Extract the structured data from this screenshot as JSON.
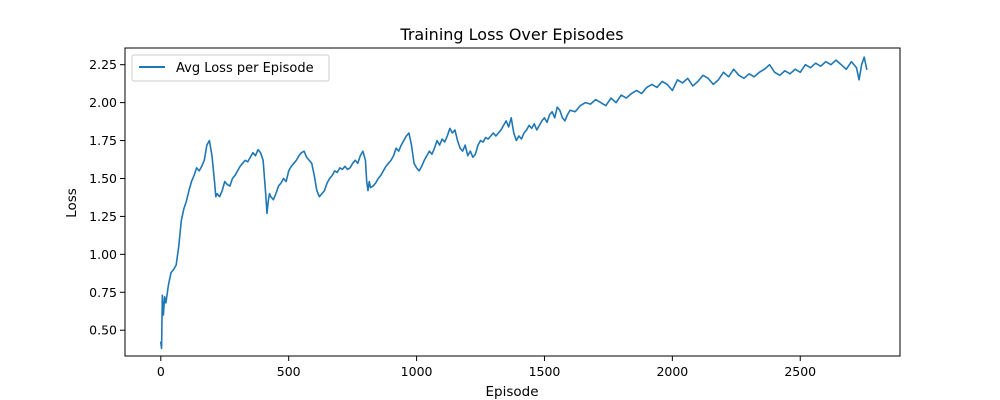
{
  "chart_data": {
    "type": "line",
    "title": "Training Loss Over Episodes",
    "xlabel": "Episode",
    "ylabel": "Loss",
    "xlim": [
      -140,
      2890
    ],
    "ylim": [
      0.33,
      2.36
    ],
    "xticks": [
      0,
      500,
      1000,
      1500,
      2000,
      2500
    ],
    "xtick_labels": [
      "0",
      "500",
      "1000",
      "1500",
      "2000",
      "2500"
    ],
    "yticks": [
      0.5,
      0.75,
      1.0,
      1.25,
      1.5,
      1.75,
      2.0,
      2.25
    ],
    "ytick_labels": [
      "0.50",
      "0.75",
      "1.00",
      "1.25",
      "1.50",
      "1.75",
      "2.00",
      "2.25"
    ],
    "grid": false,
    "legend": {
      "placement": "top-left",
      "entries": [
        "Avg Loss per Episode"
      ]
    },
    "series": [
      {
        "name": "Avg Loss per Episode",
        "color": "#1f77b4",
        "x": [
          0,
          3,
          6,
          10,
          15,
          20,
          30,
          40,
          50,
          60,
          70,
          80,
          90,
          100,
          110,
          120,
          130,
          140,
          150,
          160,
          170,
          180,
          190,
          200,
          210,
          215,
          220,
          230,
          240,
          250,
          260,
          270,
          280,
          290,
          300,
          310,
          320,
          330,
          340,
          350,
          360,
          370,
          380,
          390,
          400,
          410,
          415,
          420,
          425,
          430,
          440,
          450,
          460,
          470,
          480,
          490,
          500,
          510,
          520,
          530,
          540,
          550,
          560,
          570,
          580,
          590,
          600,
          610,
          620,
          630,
          640,
          650,
          660,
          670,
          680,
          690,
          700,
          710,
          720,
          730,
          740,
          750,
          760,
          770,
          780,
          790,
          800,
          805,
          810,
          815,
          820,
          830,
          840,
          850,
          860,
          870,
          880,
          890,
          900,
          910,
          920,
          930,
          940,
          950,
          960,
          970,
          980,
          990,
          1000,
          1010,
          1020,
          1030,
          1040,
          1050,
          1060,
          1070,
          1080,
          1090,
          1100,
          1110,
          1120,
          1130,
          1140,
          1150,
          1160,
          1170,
          1180,
          1190,
          1200,
          1210,
          1220,
          1230,
          1240,
          1250,
          1260,
          1270,
          1280,
          1290,
          1300,
          1310,
          1320,
          1330,
          1340,
          1350,
          1360,
          1370,
          1380,
          1390,
          1400,
          1410,
          1420,
          1430,
          1440,
          1450,
          1460,
          1470,
          1480,
          1490,
          1500,
          1510,
          1520,
          1530,
          1540,
          1550,
          1560,
          1570,
          1580,
          1590,
          1600,
          1620,
          1640,
          1660,
          1680,
          1700,
          1720,
          1740,
          1760,
          1780,
          1800,
          1820,
          1840,
          1860,
          1880,
          1900,
          1920,
          1940,
          1960,
          1980,
          2000,
          2020,
          2040,
          2060,
          2080,
          2100,
          2120,
          2140,
          2160,
          2180,
          2200,
          2220,
          2240,
          2260,
          2280,
          2300,
          2320,
          2340,
          2360,
          2380,
          2400,
          2420,
          2440,
          2460,
          2480,
          2500,
          2520,
          2540,
          2560,
          2580,
          2600,
          2620,
          2640,
          2660,
          2680,
          2700,
          2720,
          2730,
          2740,
          2750,
          2760
        ],
        "y": [
          0.42,
          0.38,
          0.73,
          0.6,
          0.72,
          0.68,
          0.8,
          0.88,
          0.9,
          0.93,
          1.05,
          1.22,
          1.3,
          1.35,
          1.42,
          1.48,
          1.52,
          1.57,
          1.55,
          1.58,
          1.62,
          1.72,
          1.75,
          1.65,
          1.48,
          1.38,
          1.4,
          1.38,
          1.42,
          1.48,
          1.46,
          1.45,
          1.5,
          1.52,
          1.55,
          1.58,
          1.6,
          1.62,
          1.61,
          1.64,
          1.67,
          1.65,
          1.69,
          1.67,
          1.62,
          1.4,
          1.27,
          1.35,
          1.4,
          1.38,
          1.36,
          1.4,
          1.45,
          1.47,
          1.5,
          1.48,
          1.55,
          1.58,
          1.6,
          1.62,
          1.65,
          1.67,
          1.68,
          1.64,
          1.62,
          1.6,
          1.52,
          1.42,
          1.38,
          1.4,
          1.42,
          1.47,
          1.5,
          1.52,
          1.55,
          1.54,
          1.57,
          1.56,
          1.58,
          1.56,
          1.57,
          1.6,
          1.62,
          1.6,
          1.65,
          1.68,
          1.62,
          1.48,
          1.42,
          1.48,
          1.44,
          1.45,
          1.47,
          1.5,
          1.52,
          1.55,
          1.58,
          1.6,
          1.62,
          1.65,
          1.7,
          1.68,
          1.72,
          1.75,
          1.78,
          1.8,
          1.72,
          1.6,
          1.57,
          1.55,
          1.58,
          1.62,
          1.65,
          1.68,
          1.66,
          1.7,
          1.75,
          1.72,
          1.76,
          1.74,
          1.78,
          1.83,
          1.8,
          1.82,
          1.75,
          1.7,
          1.68,
          1.72,
          1.65,
          1.68,
          1.64,
          1.66,
          1.72,
          1.75,
          1.74,
          1.77,
          1.76,
          1.78,
          1.8,
          1.78,
          1.8,
          1.82,
          1.85,
          1.88,
          1.84,
          1.9,
          1.8,
          1.75,
          1.78,
          1.76,
          1.8,
          1.82,
          1.85,
          1.83,
          1.86,
          1.82,
          1.85,
          1.88,
          1.9,
          1.87,
          1.92,
          1.94,
          1.9,
          1.97,
          1.95,
          1.9,
          1.88,
          1.92,
          1.95,
          1.94,
          1.98,
          2.0,
          1.99,
          2.02,
          2.0,
          1.98,
          2.03,
          2.0,
          2.05,
          2.03,
          2.06,
          2.08,
          2.06,
          2.1,
          2.12,
          2.1,
          2.14,
          2.12,
          2.08,
          2.15,
          2.13,
          2.16,
          2.11,
          2.14,
          2.18,
          2.16,
          2.12,
          2.15,
          2.2,
          2.17,
          2.22,
          2.18,
          2.16,
          2.19,
          2.17,
          2.2,
          2.22,
          2.25,
          2.2,
          2.18,
          2.21,
          2.19,
          2.22,
          2.2,
          2.25,
          2.23,
          2.26,
          2.24,
          2.27,
          2.25,
          2.28,
          2.25,
          2.22,
          2.27,
          2.23,
          2.15,
          2.25,
          2.3,
          2.22
        ]
      }
    ]
  }
}
